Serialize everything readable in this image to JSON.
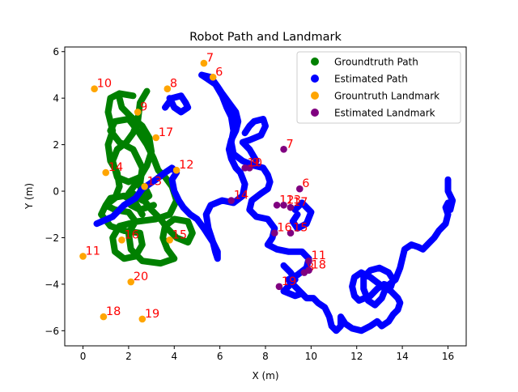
{
  "chart_data": {
    "type": "scatter",
    "title": "Robot Path and Landmark",
    "xlabel": "X (m)",
    "ylabel": "Y (m)",
    "xlim": [
      -0.8,
      16.8
    ],
    "ylim": [
      -6.65,
      6.2
    ],
    "xticks": [
      0,
      2,
      4,
      6,
      8,
      10,
      12,
      14,
      16
    ],
    "yticks": [
      -6,
      -4,
      -2,
      0,
      2,
      4,
      6
    ],
    "grid": false,
    "legend_position": "top-right",
    "series": [
      {
        "name": "Groundtruth Path",
        "color": "#008000",
        "marker": "path",
        "strokes": [
          [
            [
              2.2,
              4.1
            ],
            [
              1.6,
              4.2
            ],
            [
              1.2,
              4.0
            ],
            [
              1.1,
              3.4
            ],
            [
              1.3,
              2.6
            ],
            [
              1.1,
              2.0
            ],
            [
              1.2,
              1.3
            ],
            [
              1.5,
              0.8
            ],
            [
              1.6,
              0.2
            ],
            [
              1.4,
              -0.3
            ],
            [
              1.0,
              -0.6
            ],
            [
              0.8,
              -1.0
            ],
            [
              1.2,
              -1.5
            ],
            [
              1.8,
              -1.7
            ],
            [
              2.5,
              -1.8
            ],
            [
              2.6,
              -2.3
            ],
            [
              2.3,
              -2.8
            ],
            [
              1.8,
              -2.9
            ],
            [
              1.4,
              -2.6
            ],
            [
              1.3,
              -2.0
            ],
            [
              1.6,
              -1.5
            ],
            [
              2.4,
              -1.3
            ],
            [
              3.2,
              -1.2
            ],
            [
              3.8,
              -1.0
            ],
            [
              4.1,
              -0.4
            ],
            [
              3.9,
              0.2
            ],
            [
              3.6,
              0.6
            ],
            [
              3.3,
              0.9
            ],
            [
              3.1,
              1.4
            ],
            [
              2.8,
              2.0
            ],
            [
              2.4,
              2.6
            ],
            [
              2.0,
              3.1
            ],
            [
              1.4,
              3.0
            ],
            [
              1.2,
              2.6
            ],
            [
              1.6,
              2.1
            ],
            [
              2.2,
              1.8
            ],
            [
              2.6,
              1.0
            ],
            [
              2.5,
              0.3
            ],
            [
              2.6,
              -0.3
            ],
            [
              3.0,
              -0.8
            ],
            [
              3.4,
              -1.2
            ],
            [
              3.7,
              -1.6
            ],
            [
              4.1,
              -2.0
            ],
            [
              4.6,
              -2.2
            ],
            [
              4.8,
              -1.8
            ],
            [
              4.6,
              -1.3
            ],
            [
              4.0,
              -1.2
            ],
            [
              3.6,
              -1.5
            ],
            [
              3.5,
              -2.0
            ],
            [
              3.7,
              -2.5
            ],
            [
              4.0,
              -2.9
            ],
            [
              3.4,
              -3.1
            ],
            [
              2.6,
              -3.0
            ],
            [
              2.1,
              -2.5
            ],
            [
              2.0,
              -1.8
            ],
            [
              2.3,
              -1.3
            ],
            [
              2.0,
              -0.9
            ],
            [
              1.4,
              -0.8
            ],
            [
              1.0,
              -0.6
            ],
            [
              1.2,
              -0.3
            ],
            [
              1.8,
              -0.2
            ],
            [
              2.3,
              -0.5
            ],
            [
              2.6,
              -1.0
            ]
          ],
          [
            [
              2.8,
              4.3
            ],
            [
              2.5,
              3.8
            ],
            [
              2.4,
              3.0
            ],
            [
              2.2,
              2.5
            ],
            [
              1.9,
              2.1
            ],
            [
              1.5,
              1.8
            ],
            [
              1.3,
              1.3
            ],
            [
              1.5,
              0.6
            ],
            [
              2.0,
              0.4
            ],
            [
              2.5,
              0.6
            ],
            [
              2.8,
              1.1
            ],
            [
              3.0,
              1.7
            ],
            [
              2.9,
              2.3
            ],
            [
              2.6,
              2.8
            ],
            [
              2.1,
              3.2
            ],
            [
              1.7,
              3.6
            ],
            [
              1.6,
              4.0
            ]
          ],
          [
            [
              2.2,
              -0.1
            ],
            [
              2.6,
              -0.4
            ],
            [
              2.9,
              -0.2
            ],
            [
              2.7,
              0.2
            ],
            [
              2.3,
              0.3
            ],
            [
              2.0,
              -0.1
            ],
            [
              2.1,
              -0.6
            ],
            [
              2.5,
              -0.8
            ],
            [
              3.1,
              -0.6
            ]
          ]
        ]
      },
      {
        "name": "Estimated Path",
        "color": "#0000ff",
        "marker": "path",
        "strokes": [
          [
            [
              0.6,
              -1.4
            ],
            [
              1.3,
              -1.1
            ],
            [
              1.8,
              -0.6
            ],
            [
              2.3,
              -0.3
            ],
            [
              2.6,
              0.1
            ],
            [
              3.2,
              0.5
            ],
            [
              3.6,
              0.8
            ],
            [
              3.9,
              1.0
            ],
            [
              4.1,
              0.8
            ],
            [
              3.9,
              0.5
            ],
            [
              4.0,
              0.0
            ],
            [
              4.2,
              -0.4
            ],
            [
              4.4,
              -0.7
            ],
            [
              4.7,
              -1.0
            ],
            [
              5.0,
              -1.2
            ],
            [
              5.3,
              -1.6
            ],
            [
              5.5,
              -1.9
            ],
            [
              5.7,
              -2.2
            ],
            [
              5.8,
              -2.6
            ],
            [
              5.9,
              -2.9
            ],
            [
              5.9,
              -2.6
            ],
            [
              5.7,
              -2.2
            ],
            [
              5.5,
              -1.6
            ],
            [
              5.4,
              -1.0
            ],
            [
              5.6,
              -0.6
            ],
            [
              6.1,
              -0.4
            ],
            [
              6.6,
              -0.5
            ],
            [
              7.0,
              -0.2
            ],
            [
              7.1,
              0.3
            ],
            [
              6.9,
              0.8
            ],
            [
              6.7,
              1.0
            ],
            [
              6.5,
              1.4
            ],
            [
              6.4,
              1.8
            ],
            [
              6.5,
              2.2
            ],
            [
              6.7,
              2.6
            ],
            [
              6.8,
              3.0
            ],
            [
              6.7,
              3.4
            ],
            [
              6.4,
              3.8
            ],
            [
              6.1,
              4.2
            ],
            [
              5.9,
              4.5
            ],
            [
              5.6,
              4.9
            ],
            [
              5.2,
              5.0
            ],
            [
              5.8,
              4.6
            ],
            [
              6.1,
              4.1
            ],
            [
              6.3,
              3.6
            ],
            [
              6.5,
              3.2
            ],
            [
              6.6,
              2.6
            ],
            [
              6.5,
              2.1
            ],
            [
              6.6,
              1.6
            ],
            [
              7.0,
              1.3
            ],
            [
              7.5,
              1.1
            ],
            [
              7.9,
              1.0
            ],
            [
              8.1,
              0.7
            ],
            [
              8.2,
              0.4
            ],
            [
              8.1,
              0.1
            ],
            [
              7.8,
              -0.1
            ],
            [
              7.4,
              -0.4
            ],
            [
              7.3,
              -0.8
            ],
            [
              7.6,
              -1.1
            ],
            [
              8.1,
              -1.2
            ],
            [
              8.4,
              -1.6
            ],
            [
              8.3,
              -2.0
            ],
            [
              8.1,
              -2.3
            ],
            [
              8.5,
              -2.5
            ],
            [
              9.0,
              -2.6
            ],
            [
              9.6,
              -2.6
            ],
            [
              9.9,
              -2.9
            ],
            [
              9.8,
              -3.3
            ],
            [
              9.4,
              -3.6
            ],
            [
              9.0,
              -3.8
            ],
            [
              9.2,
              -4.0
            ],
            [
              9.5,
              -4.3
            ],
            [
              9.8,
              -4.6
            ],
            [
              10.1,
              -4.6
            ],
            [
              10.3,
              -4.8
            ],
            [
              10.6,
              -5.0
            ],
            [
              10.8,
              -5.4
            ],
            [
              10.9,
              -5.8
            ],
            [
              11.1,
              -6.0
            ],
            [
              11.3,
              -5.8
            ],
            [
              11.3,
              -5.4
            ],
            [
              11.5,
              -5.7
            ],
            [
              11.8,
              -5.9
            ],
            [
              12.2,
              -6.0
            ],
            [
              12.6,
              -5.8
            ],
            [
              12.9,
              -5.6
            ],
            [
              13.1,
              -5.8
            ],
            [
              13.4,
              -5.6
            ],
            [
              13.6,
              -5.3
            ],
            [
              13.8,
              -5.1
            ],
            [
              13.9,
              -4.8
            ],
            [
              13.8,
              -4.6
            ],
            [
              13.5,
              -4.3
            ],
            [
              13.0,
              -4.0
            ],
            [
              12.6,
              -3.7
            ],
            [
              12.2,
              -3.5
            ],
            [
              11.9,
              -3.7
            ],
            [
              11.8,
              -4.1
            ],
            [
              11.9,
              -4.5
            ],
            [
              12.1,
              -4.7
            ],
            [
              12.6,
              -4.5
            ],
            [
              12.9,
              -4.2
            ],
            [
              13.2,
              -4.0
            ],
            [
              13.5,
              -4.1
            ],
            [
              13.6,
              -3.8
            ],
            [
              13.4,
              -3.5
            ],
            [
              13.0,
              -3.3
            ],
            [
              12.6,
              -3.4
            ],
            [
              12.3,
              -3.7
            ],
            [
              12.3,
              -4.2
            ],
            [
              12.5,
              -4.7
            ],
            [
              12.8,
              -4.9
            ],
            [
              13.1,
              -4.6
            ],
            [
              13.3,
              -4.1
            ],
            [
              13.7,
              -3.8
            ],
            [
              13.9,
              -3.3
            ],
            [
              14.0,
              -2.9
            ],
            [
              14.1,
              -2.5
            ],
            [
              14.4,
              -2.3
            ],
            [
              14.7,
              -2.4
            ],
            [
              14.9,
              -2.5
            ],
            [
              15.2,
              -2.2
            ],
            [
              15.4,
              -2.0
            ],
            [
              15.6,
              -1.7
            ],
            [
              15.9,
              -1.4
            ],
            [
              16.0,
              -1.0
            ],
            [
              15.9,
              -0.7
            ],
            [
              16.0,
              -0.5
            ],
            [
              16.1,
              -0.8
            ],
            [
              16.2,
              -0.4
            ],
            [
              16.0,
              0.0
            ],
            [
              16.0,
              0.5
            ]
          ],
          [
            [
              3.6,
              3.6
            ],
            [
              3.9,
              4.0
            ],
            [
              4.3,
              4.1
            ],
            [
              4.5,
              3.8
            ],
            [
              4.6,
              3.6
            ],
            [
              4.3,
              3.4
            ],
            [
              4.0,
              3.6
            ],
            [
              3.8,
              4.0
            ]
          ],
          [
            [
              7.1,
              2.5
            ],
            [
              7.3,
              2.8
            ],
            [
              7.5,
              3.0
            ],
            [
              7.9,
              3.1
            ],
            [
              8.0,
              2.8
            ],
            [
              7.8,
              2.4
            ],
            [
              7.3,
              2.2
            ],
            [
              7.0,
              2.1
            ],
            [
              7.3,
              1.8
            ],
            [
              7.6,
              1.3
            ]
          ],
          [
            [
              9.3,
              -0.8
            ],
            [
              9.6,
              -0.5
            ],
            [
              10.0,
              -0.9
            ],
            [
              9.8,
              -1.4
            ],
            [
              9.4,
              -1.6
            ],
            [
              9.2,
              -1.3
            ],
            [
              9.4,
              -1.0
            ]
          ],
          [
            [
              8.8,
              -3.2
            ],
            [
              9.1,
              -3.5
            ],
            [
              9.3,
              -3.8
            ],
            [
              9.0,
              -4.1
            ],
            [
              8.8,
              -4.3
            ],
            [
              9.3,
              -4.5
            ],
            [
              9.6,
              -4.4
            ]
          ]
        ]
      },
      {
        "name": "Grountruth Landmark",
        "color": "#ffa500",
        "marker": "circle",
        "labels": [
          "6",
          "7",
          "8",
          "9",
          "10",
          "11",
          "12",
          "13",
          "14",
          "15",
          "16",
          "17",
          "18",
          "19",
          "20"
        ],
        "x": [
          5.7,
          5.3,
          3.7,
          2.4,
          0.5,
          0.0,
          4.1,
          2.7,
          1.0,
          3.8,
          1.7,
          3.2,
          0.9,
          2.6,
          2.1
        ],
        "y": [
          4.9,
          5.5,
          4.4,
          3.4,
          4.4,
          -2.8,
          0.9,
          0.2,
          0.8,
          -2.1,
          -2.1,
          2.3,
          -5.4,
          -5.5,
          -3.9
        ]
      },
      {
        "name": "Estimated Landmark",
        "color": "#800080",
        "marker": "circle",
        "labels": [
          "6",
          "7",
          "8",
          "9",
          "10",
          "11",
          "12",
          "13",
          "14",
          "15",
          "16",
          "17",
          "18",
          "19"
        ],
        "x": [
          9.5,
          8.8,
          9.7,
          7.3,
          7.1,
          9.9,
          8.5,
          8.8,
          6.5,
          9.1,
          8.4,
          9.1,
          9.9,
          8.6
        ],
        "y": [
          0.1,
          1.8,
          -3.5,
          1.0,
          1.0,
          -3.0,
          -0.6,
          -0.6,
          -0.4,
          -1.8,
          -1.8,
          -0.7,
          -3.4,
          -4.1
        ]
      }
    ]
  }
}
